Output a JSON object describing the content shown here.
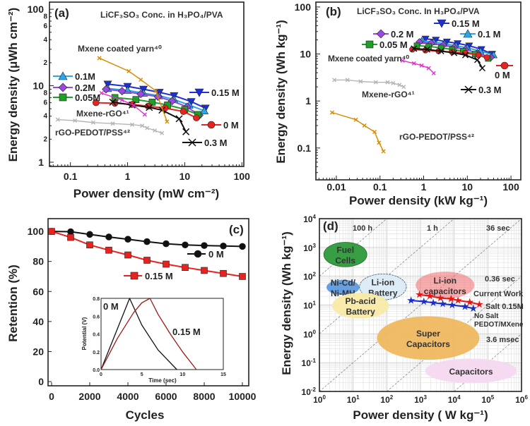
{
  "chart_data": [
    {
      "panel": "(a)",
      "type": "line",
      "title": "LiCF₃SO₃ Conc. in H₃PO₄/PVA",
      "xlabel": "Power density (mW cm⁻²)",
      "ylabel": "Energy density (μWh cm⁻²)",
      "xscale": "log",
      "yscale": "log",
      "xlim": [
        0.043,
        108
      ],
      "ylim": [
        0.88,
        124
      ],
      "x_ticks": [
        {
          "v": 0.1,
          "t": "0.1"
        },
        {
          "v": 1,
          "t": "1"
        },
        {
          "v": 10,
          "t": "10"
        },
        {
          "v": 100,
          "t": "100"
        }
      ],
      "y_ticks": [
        {
          "v": 1,
          "t": "1"
        },
        {
          "v": 2,
          "t": "2"
        },
        {
          "v": 4,
          "t": "4"
        },
        {
          "v": 6,
          "t": "6"
        },
        {
          "v": 8,
          "t": "8"
        },
        {
          "v": 10,
          "t": "10"
        },
        {
          "v": 20,
          "t": "2"
        },
        {
          "v": 40,
          "t": "4"
        },
        {
          "v": 60,
          "t": "6"
        },
        {
          "v": 80,
          "t": "8"
        },
        {
          "v": 100,
          "t": "100"
        }
      ],
      "series": [
        {
          "name": "0.15 M",
          "color": "#1f2fd6",
          "marker": "tri-down",
          "x": [
            0.45,
            1.0,
            1.9,
            3.6,
            6.5,
            13,
            23
          ],
          "y": [
            10.5,
            9.8,
            9,
            8.2,
            7.4,
            6.2,
            5.1
          ]
        },
        {
          "name": "0.1M",
          "color": "#2aa7e8",
          "marker": "tri-up",
          "x": [
            0.45,
            1,
            1.9,
            3.6,
            6.5,
            12,
            22
          ],
          "y": [
            9.2,
            8.7,
            8,
            7.4,
            6.6,
            5.6,
            4.7
          ]
        },
        {
          "name": "0.2M",
          "color": "#9a48e0",
          "marker": "diamond",
          "x": [
            0.42,
            0.8,
            1.7,
            3.4,
            6,
            11,
            18
          ],
          "y": [
            9,
            8.5,
            7.8,
            7.2,
            6.3,
            5.3,
            4.1
          ]
        },
        {
          "name": "0.05M",
          "color": "#1f9e2a",
          "marker": "square",
          "x": [
            0.6,
            1.4,
            2.7,
            5,
            10,
            17
          ],
          "y": [
            7,
            6.6,
            6.1,
            5.6,
            4.9,
            4.2
          ]
        },
        {
          "name": "0 M",
          "color": "#e8231f",
          "marker": "circle",
          "x": [
            0.28,
            0.6,
            1.2,
            2.3,
            4.5,
            9.5,
            16
          ],
          "y": [
            6,
            5.9,
            5.7,
            5.4,
            5.1,
            4.6,
            3.8
          ]
        },
        {
          "name": "0.3 M",
          "color": "#111111",
          "marker": "bowtie",
          "x": [
            0.55,
            1.2,
            2.4,
            4,
            8,
            10.5
          ],
          "y": [
            6.1,
            5.6,
            5.2,
            4.8,
            3.7,
            2.5
          ]
        },
        {
          "name": "Mxene coated yarn⁴⁰",
          "color": "#d98a00",
          "marker": "small",
          "x": [
            0.32,
            1.05,
            1.7,
            3.1,
            4.9
          ],
          "y": [
            23,
            15.5,
            12,
            8.6,
            3.4
          ]
        },
        {
          "name": "Mxene-rGO⁴¹",
          "color": "#e030d0",
          "marker": "small",
          "x": [
            0.35,
            0.8,
            1.3,
            2
          ],
          "y": [
            8,
            6.5,
            5.5,
            4.2
          ]
        },
        {
          "name": "rGO-PEDOT/PSS⁴²",
          "color": "#b5b5b5",
          "marker": "small",
          "x": [
            0.06,
            0.12,
            0.25,
            0.55,
            1.2,
            1.8,
            2.2,
            3,
            4
          ],
          "y": [
            3.6,
            3.5,
            3.3,
            3.2,
            3.1,
            3,
            2.8,
            2.6,
            2.4
          ]
        }
      ]
    },
    {
      "panel": "(b)",
      "type": "line",
      "title": "LiCF₃SO₃ Conc. In H₃PO₄/PVA",
      "xlabel": "Power density (kW kg⁻¹)",
      "ylabel": "Energy density (Wh kg⁻¹)",
      "xscale": "log",
      "yscale": "log",
      "xlim": [
        0.0034,
        168
      ],
      "ylim": [
        0.021,
        127
      ],
      "x_ticks": [
        {
          "v": 0.01,
          "t": "0.01"
        },
        {
          "v": 0.1,
          "t": "0.1"
        },
        {
          "v": 1,
          "t": "1"
        },
        {
          "v": 10,
          "t": "10"
        },
        {
          "v": 100,
          "t": "100"
        }
      ],
      "y_ticks": [
        {
          "v": 0.1,
          "t": "0.1"
        },
        {
          "v": 1,
          "t": "1"
        },
        {
          "v": 10,
          "t": "10"
        },
        {
          "v": 100,
          "t": "100"
        }
      ],
      "series": [
        {
          "name": "0.15 M",
          "color": "#1f2fd6",
          "marker": "tri-down",
          "x": [
            1.1,
            1.9,
            3.4,
            6,
            11,
            21,
            37
          ],
          "y": [
            21,
            20,
            18.2,
            16.8,
            15,
            12.6,
            10
          ]
        },
        {
          "name": "0.1 M",
          "color": "#2aa7e8",
          "marker": "tri-up",
          "x": [
            0.9,
            1.7,
            3,
            5.5,
            10,
            20,
            40
          ],
          "y": [
            19,
            18,
            16.5,
            15,
            13.5,
            11.5,
            9.5
          ]
        },
        {
          "name": "0.2 M",
          "color": "#9a48e0",
          "marker": "diamond",
          "x": [
            0.8,
            1.5,
            2.8,
            5,
            9,
            17,
            35
          ],
          "y": [
            18,
            17,
            15.5,
            14,
            12.5,
            10.5,
            8.5
          ]
        },
        {
          "name": "0.05 M",
          "color": "#1f9e2a",
          "marker": "square",
          "x": [
            0.7,
            1.3,
            2.5,
            4.5,
            8,
            15,
            30
          ],
          "y": [
            15,
            14.5,
            13.5,
            12.5,
            11.5,
            10,
            8
          ]
        },
        {
          "name": "0 M",
          "color": "#e8231f",
          "marker": "circle",
          "x": [
            0.55,
            1.1,
            2.2,
            4.5,
            9,
            18,
            28
          ],
          "y": [
            12.5,
            12,
            11.5,
            11,
            10.5,
            9.5,
            8.5
          ]
        },
        {
          "name": "0.3 M",
          "color": "#111111",
          "marker": "bowtie",
          "x": [
            0.6,
            1.2,
            2.5,
            5,
            9,
            17,
            22
          ],
          "y": [
            13,
            12.5,
            11.5,
            10.5,
            9.5,
            7.5,
            5
          ]
        },
        {
          "name": "Mxene coated yarn⁴⁰",
          "color": "#e030d0",
          "marker": "small",
          "x": [
            0.33,
            0.6,
            0.9,
            1.3,
            1.7
          ],
          "y": [
            7.2,
            6.3,
            5.7,
            5,
            3.9
          ]
        },
        {
          "name": "Mxene-rGO⁴¹",
          "color": "#b5b5b5",
          "marker": "small",
          "x": [
            0.009,
            0.018,
            0.036,
            0.08,
            0.15,
            0.2,
            0.28,
            0.35
          ],
          "y": [
            2.8,
            2.8,
            2.6,
            2.5,
            2.5,
            2.4,
            2.2,
            2.0
          ]
        },
        {
          "name": "rGO-PEDOT/PSS⁴²",
          "color": "#d98a00",
          "marker": "small",
          "x": [
            0.008,
            0.028,
            0.044,
            0.075,
            0.095,
            0.12
          ],
          "y": [
            0.57,
            0.4,
            0.3,
            0.22,
            0.13,
            0.085
          ]
        }
      ]
    },
    {
      "panel": "(c)",
      "type": "line",
      "xlabel": "Cycles",
      "ylabel": "Retention (%)",
      "xlim": [
        -185,
        10333
      ],
      "ylim": [
        -2.8,
        108.5
      ],
      "x_ticks": [
        0,
        2000,
        4000,
        6000,
        8000,
        10000
      ],
      "y_ticks": [
        0,
        20,
        40,
        60,
        80,
        100
      ],
      "series": [
        {
          "name": "0 M",
          "color": "#111111",
          "marker": "circle",
          "x": [
            0,
            1000,
            2000,
            3000,
            4000,
            5000,
            6000,
            7000,
            8000,
            9000,
            10000
          ],
          "y": [
            100,
            99.8,
            98,
            96.3,
            94.8,
            93.2,
            91.8,
            91,
            90.6,
            90.3,
            90
          ]
        },
        {
          "name": "0.15 M",
          "color": "#e8231f",
          "marker": "square",
          "x": [
            0,
            1000,
            2000,
            3000,
            4000,
            5000,
            6000,
            7000,
            8000,
            9000,
            10000
          ],
          "y": [
            100,
            96,
            91,
            87.5,
            84.3,
            80.8,
            78.2,
            76,
            74,
            72,
            70
          ]
        }
      ],
      "inset": {
        "type": "line",
        "xlabel": "Time (sec)",
        "ylabel": "Potential (V)",
        "xlim": [
          0,
          15
        ],
        "ylim": [
          0,
          0.8
        ],
        "x_ticks": [
          0,
          5,
          10,
          15
        ],
        "y_ticks": [
          "0.0",
          "0.2",
          "0.4",
          "0.6",
          "0.8"
        ],
        "series": [
          {
            "name": "0 M",
            "color": "#111111",
            "x": [
              0,
              3.5,
              5,
              7,
              9.3
            ],
            "y": [
              0,
              0.8,
              0.5,
              0.22,
              0
            ]
          },
          {
            "name": "0.15 M",
            "color": "#a01818",
            "x": [
              0,
              2,
              4,
              5,
              6,
              7,
              8.5,
              10,
              11.7
            ],
            "y": [
              0,
              0.35,
              0.64,
              0.75,
              0.8,
              0.62,
              0.4,
              0.2,
              0
            ]
          }
        ]
      }
    },
    {
      "panel": "(d)",
      "type": "scatter",
      "xlabel": "Power density ( W kg⁻¹)",
      "ylabel": "Energy density (Wh kg⁻¹)",
      "xscale": "log",
      "yscale": "log",
      "xlim": [
        1,
        1000000
      ],
      "ylim": [
        0.01,
        10000
      ],
      "x_tick_exponents": [
        "0",
        "1",
        "2",
        "3",
        "4",
        "5",
        "6"
      ],
      "y_tick_exponents": [
        "-2",
        "-1",
        "0",
        "1",
        "2",
        "3",
        "4"
      ],
      "grid": true,
      "time_lines": [
        {
          "label": "100 h",
          "hours": 100
        },
        {
          "label": "1 h",
          "hours": 1
        },
        {
          "label": "36 sec",
          "hours": 0.01
        },
        {
          "label": "0.36 sec",
          "hours": 0.0001
        },
        {
          "label": "3.6 msec",
          "hours": 1e-06
        }
      ],
      "regions": [
        {
          "name": "Fuel Cells",
          "lines": [
            "Fuel",
            "Cells"
          ],
          "color": "#2f9a3a",
          "xlog": [
            0.13,
            1.41
          ],
          "ylog": [
            2.33,
            3.18
          ]
        },
        {
          "name": "Ni-Cd/Ni-MH",
          "lines": [
            "Ni-Cd/",
            "Ni-MH"
          ],
          "color": "#5e9be0",
          "xlog": [
            0.21,
            1.19
          ],
          "ylog": [
            1.35,
            1.88
          ]
        },
        {
          "name": "Li-ion Battery",
          "lines": [
            "Li-ion",
            "Battery"
          ],
          "color": "#dcecf6",
          "xlog": [
            1.19,
            2.58
          ],
          "ylog": [
            1.18,
            2.08
          ]
        },
        {
          "name": "Pb-acid Battery",
          "lines": [
            "Pb-acid",
            "Battery"
          ],
          "color": "#f8eaa6",
          "xlog": [
            0.38,
            2.06
          ],
          "ylog": [
            0.53,
            1.43
          ]
        },
        {
          "name": "Li-ion capacitors",
          "lines": [
            "Li-ion",
            "capacitors"
          ],
          "color": "#f26b6b",
          "xlog": [
            2.86,
            4.6
          ],
          "ylog": [
            1.22,
            2.16
          ]
        },
        {
          "name": "Super Capacitors",
          "lines": [
            "Super",
            "Capacitors"
          ],
          "color": "#f0b860",
          "xlog": [
            1.71,
            4.75
          ],
          "ylog": [
            -0.9,
            0.61
          ]
        },
        {
          "name": "Capacitors",
          "lines": [
            "Capacitors"
          ],
          "color": "#f6d8f0",
          "xlog": [
            3.14,
            5.86
          ],
          "ylog": [
            -1.71,
            -0.86
          ]
        }
      ],
      "series": [
        {
          "name": "Salt 0.15M",
          "color": "#e01818",
          "marker": "star",
          "x": [
            930,
            1900,
            3900,
            8100,
            13000,
            29000,
            56000
          ],
          "y": [
            23,
            20.5,
            17.5,
            16.3,
            14.4,
            12.6,
            10.5
          ]
        },
        {
          "name": "No Salt PEDOT/MXene",
          "color": "#1a2ccc",
          "marker": "star",
          "x": [
            525,
            1260,
            2400,
            4600,
            8700,
            21000,
            37000
          ],
          "y": [
            14.4,
            13.2,
            12,
            11,
            10,
            8.8,
            7.6
          ]
        }
      ],
      "annotations": {
        "current_work": "Current Work",
        "salt": "Salt 0.15M",
        "no_salt": "No Salt",
        "pedot": "PEDOT/MXene"
      }
    }
  ]
}
